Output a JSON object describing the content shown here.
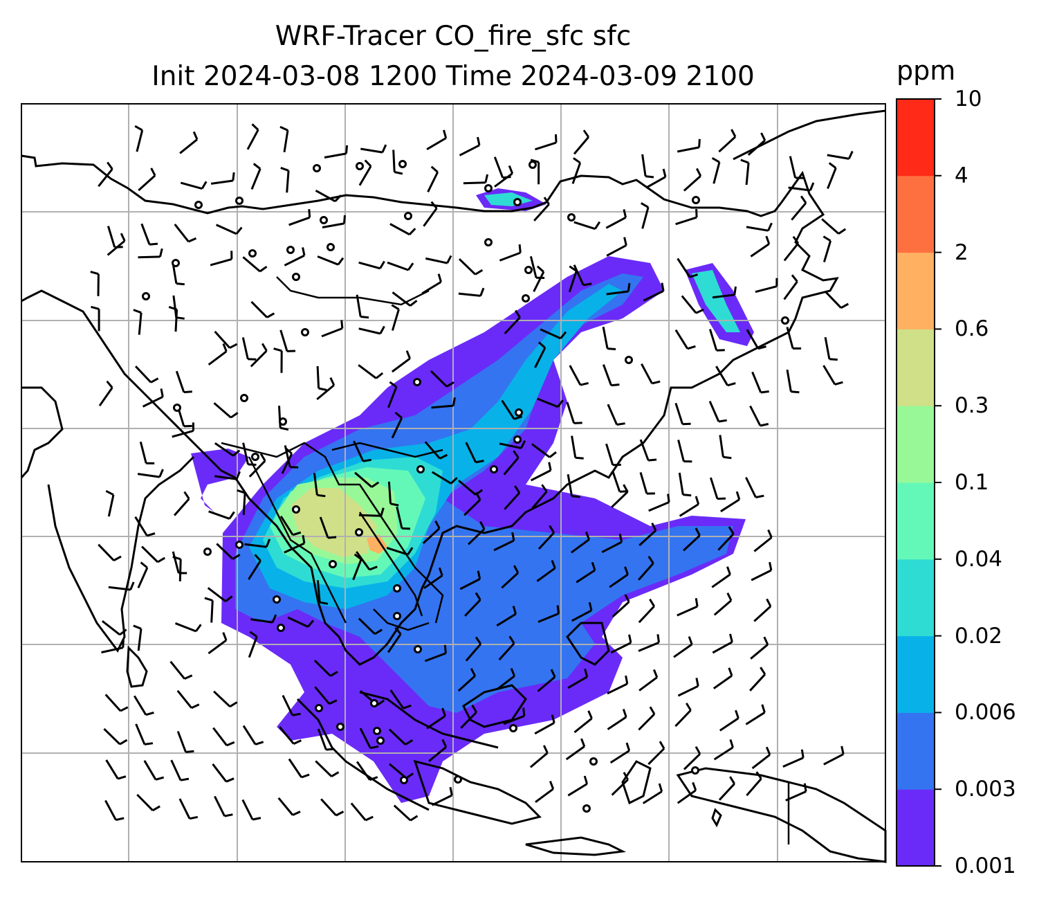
{
  "title": {
    "line1": "WRF-Tracer CO_fire_sfc sfc",
    "line2": "Init 2024-03-08 1200 Time 2024-03-09 2100"
  },
  "colorbar": {
    "unit": "ppm",
    "levels": [
      "0.001",
      "0.003",
      "0.006",
      "0.02",
      "0.04",
      "0.1",
      "0.3",
      "0.6",
      "2",
      "4",
      "10"
    ],
    "colors": [
      "#6a2bf8",
      "#3474f0",
      "#08b2e8",
      "#2edcd4",
      "#64f8b8",
      "#98f898",
      "#d0e088",
      "#ffb060",
      "#ff7040",
      "#ff2a18"
    ]
  },
  "map": {
    "projection": "lat-lon",
    "gridlines": true,
    "overlays": [
      "coastlines",
      "country-borders",
      "wind-barbs",
      "calm-circles"
    ],
    "plume_field": "CO_fire_sfc"
  }
}
